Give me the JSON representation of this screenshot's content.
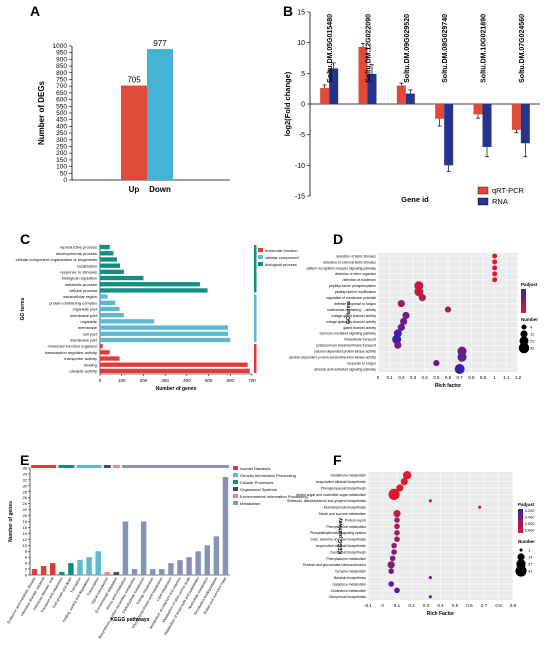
{
  "panel_letters": [
    "A",
    "B",
    "C",
    "D",
    "E",
    "F"
  ],
  "colors": {
    "red": "#e04a3a",
    "blue": "#44b3d6",
    "navy": "#27348b",
    "teal": "#12907f",
    "lightblue": "#5db8d6",
    "darkred": "#e03b3a",
    "orange": "#e58c7b",
    "slate": "#8593b7",
    "dkslate": "#3c4a6e"
  },
  "chart_data": [
    {
      "panel": "A",
      "type": "bar",
      "categories": [
        "Up",
        "Down"
      ],
      "values": [
        705,
        977
      ],
      "data_labels": [
        "705",
        "977"
      ],
      "ylabel": "Number of DEGs",
      "ylim": [
        0,
        1000
      ],
      "yticks": [
        0,
        50,
        100,
        150,
        200,
        250,
        300,
        350,
        400,
        450,
        500,
        550,
        600,
        650,
        700,
        750,
        800,
        850,
        900,
        950,
        1000
      ],
      "colors": [
        "#e04a3a",
        "#44b3d6"
      ]
    },
    {
      "panel": "B",
      "type": "bar",
      "categories": [
        "Soltu.DM.05G015480",
        "Soltu.DM.12G022090",
        "Soltu.DM.09G029520",
        "Soltu.DM.08G029740",
        "Soltu.DM.10G021890",
        "Soltu.DM.07G024560"
      ],
      "series": [
        {
          "name": "qRT-PCR",
          "values": [
            2.6,
            9.3,
            3.0,
            -2.4,
            -1.7,
            -4.2
          ],
          "color": "#e04a3a"
        },
        {
          "name": "RNA",
          "values": [
            5.8,
            4.9,
            1.7,
            -10.0,
            -7.0,
            -6.4
          ],
          "color": "#27348b"
        }
      ],
      "xlabel": "Gene id",
      "ylabel": "log2(Fold change)",
      "ylim": [
        -15,
        15
      ],
      "yticks": [
        -15,
        -10,
        -5,
        0,
        5,
        10,
        15
      ]
    },
    {
      "panel": "C",
      "type": "bar",
      "categories": [
        "reproductive process",
        "developmental process",
        "cellular component organization or biogenesis",
        "localization",
        "response to stimulus",
        "biological regulation",
        "metabolic process",
        "cellular process",
        "extracellular region",
        "protein-containing complex",
        "organelle part",
        "membrane part",
        "organelle",
        "membrane",
        "cell part",
        "membrane part",
        "molecular function regulator",
        "transcription regulator activity",
        "transporter activity",
        "binding",
        "catalytic activity"
      ],
      "values": [
        45,
        62,
        78,
        92,
        110,
        200,
        460,
        495,
        35,
        70,
        90,
        110,
        250,
        590,
        590,
        600,
        12,
        45,
        90,
        680,
        690
      ],
      "category_group": [
        "biological process",
        "biological process",
        "biological process",
        "biological process",
        "biological process",
        "biological process",
        "biological process",
        "biological process",
        "cellular component",
        "cellular component",
        "cellular component",
        "cellular component",
        "cellular component",
        "cellular component",
        "cellular component",
        "cellular component",
        "molecular function",
        "molecular function",
        "molecular function",
        "molecular function",
        "molecular function"
      ],
      "legend": [
        {
          "name": "molecular function",
          "color": "#e03b3a"
        },
        {
          "name": "cellular component",
          "color": "#5db8d6"
        },
        {
          "name": "biological process",
          "color": "#12907f"
        }
      ],
      "xlabel": "Number of genes",
      "ylabel": "GO terms",
      "xlim": [
        0,
        700
      ],
      "xticks": [
        0,
        100,
        200,
        300,
        400,
        500,
        600,
        700
      ]
    },
    {
      "panel": "D",
      "type": "scatter",
      "categories": [
        "detection of biotic stimulus",
        "detection of external biotic stimulus",
        "pattern recognition receptor signaling pathway",
        "detection of other organism",
        "detection of bacterium",
        "peptidyl-serine phosphorylation",
        "peptidyl-serine modification",
        "regulation of membrane potential",
        "defense response to fungus",
        "nucleobase-containing ... activity",
        "voltage-gated channel activity",
        "voltage-gated ion channel activity",
        "gated channel activity",
        "hormone-mediated signaling pathway",
        "intracellular transport",
        "potassium ion transmembrane transport",
        "calcium-dependent protein kinase activity",
        "calcium-dependent protein serine/threonine kinase activity",
        "response to fungus",
        "abscisic acid-activated signaling pathway"
      ],
      "x": [
        1.0,
        1.0,
        1.0,
        1.0,
        1.0,
        0.35,
        0.35,
        0.38,
        0.2,
        0.6,
        0.24,
        0.22,
        0.2,
        0.17,
        0.16,
        0.17,
        0.72,
        0.72,
        0.5,
        0.7
      ],
      "sizes": [
        4,
        4,
        4,
        4,
        4,
        22,
        22,
        12,
        12,
        8,
        12,
        12,
        12,
        16,
        22,
        12,
        22,
        22,
        8,
        28
      ],
      "padjust": [
        1e-05,
        1e-05,
        1e-05,
        1e-05,
        1e-05,
        0.0003,
        0.0003,
        0.0005,
        0.0008,
        0.0006,
        0.0012,
        0.0013,
        0.0014,
        0.0017,
        0.0018,
        0.0012,
        0.0014,
        0.0014,
        0.0013,
        0.0018
      ],
      "xlabel": "Rich factor",
      "ylabel": "GO terms",
      "xlim": [
        0,
        1.2
      ],
      "xticks": [
        "0",
        "0.1",
        "0.2",
        "0.3",
        "0.4",
        "0.5",
        "0.6",
        "0.7",
        "0.8",
        "0.9",
        "1",
        "1.1",
        "1.2"
      ],
      "legend_title_color": "Padjust",
      "legend_title_size": "Number",
      "size_levels": [
        4,
        12,
        22,
        32
      ]
    },
    {
      "panel": "E",
      "type": "bar",
      "categories": [
        "Endocrine and metabolic disease",
        "Infectious disease: bacterial",
        "Infectious disease: viral",
        "Transport and catabolism",
        "Cell growth and death",
        "Translation",
        "Folding, sorting and degradation",
        "Transcription",
        "Signal transduction",
        "Environmental adaptation",
        "Amino acid metabolism",
        "Biosynthesis of other secondary metabolites",
        "Carbohydrate metabolism",
        "Energy metabolism",
        "Glycan biosynthesis and metabolism",
        "Lipid metabolism",
        "Metabolism of cofactors and vitamins",
        "Metabolism of other amino acids",
        "Metabolism of terpenoids and polyketides",
        "Nucleotide metabolism",
        "Xenobiotics biodegradation",
        "Global and overview maps"
      ],
      "values": [
        2,
        3,
        4,
        1,
        4,
        5,
        6,
        8,
        1,
        1,
        18,
        2,
        18,
        2,
        2,
        4,
        5,
        6,
        8,
        10,
        13,
        33
      ],
      "category_group": [
        "Human Diseases",
        "Human Diseases",
        "Human Diseases",
        "Cellular Processes",
        "Cellular Processes",
        "Genetic Information Processing",
        "Genetic Information Processing",
        "Genetic Information Processing",
        "Environmental Information Processing",
        "Organismal Systems",
        "Metabolism",
        "Metabolism",
        "Metabolism",
        "Metabolism",
        "Metabolism",
        "Metabolism",
        "Metabolism",
        "Metabolism",
        "Metabolism",
        "Metabolism",
        "Metabolism",
        "Metabolism"
      ],
      "legend": [
        {
          "name": "Human Diseases",
          "color": "#e03b3a"
        },
        {
          "name": "Genetic Information Processing",
          "color": "#5db8d6"
        },
        {
          "name": "Cellular Processes",
          "color": "#12907f"
        },
        {
          "name": "Organismal Systems",
          "color": "#3c4a6e"
        },
        {
          "name": "Environmental Information Processing",
          "color": "#e58c7b"
        },
        {
          "name": "Metabolism",
          "color": "#8593b7"
        }
      ],
      "xlabel": "KEGG pathways",
      "ylabel": "Number of genes",
      "ylim": [
        0,
        36
      ],
      "yticks": [
        0,
        2,
        4,
        6,
        8,
        10,
        12,
        14,
        16,
        18,
        20,
        22,
        24,
        26,
        28,
        30,
        32,
        34,
        36
      ]
    },
    {
      "panel": "F",
      "type": "scatter",
      "categories": [
        "Glutathione metabolism",
        "Isoquinoline alkaloid biosynthesis",
        "Phenylpropanoid biosynthesis",
        "Amino sugar and nucleotide sugar metabolism",
        "Stilbenoid, diarylheptanoid and gingerol biosynthesis",
        "Monoterpenoid biosynthesis",
        "Starch and sucrose metabolism",
        "Protein export",
        "Phenylalanine metabolism",
        "Phosphatidylinositol signaling system",
        "Cutin, suberine and wax biosynthesis",
        "Isoquinoline alkaloid biosynthesis",
        "Carotenoid biosynthesis",
        "Phenylalanine metabolism",
        "Pentose and glucuronate interconversions",
        "Tyrosine metabolism",
        "Betalain biosynthesis",
        "Galactose metabolism",
        "Cholesterol metabolism",
        "Diterpenoid biosynthesis"
      ],
      "x": [
        0.17,
        0.15,
        0.12,
        0.08,
        0.33,
        0.67,
        0.1,
        0.1,
        0.1,
        0.1,
        0.1,
        0.08,
        0.08,
        0.07,
        0.06,
        0.06,
        0.33,
        0.06,
        0.1,
        0.33
      ],
      "sizes": [
        20,
        14,
        14,
        41,
        1,
        1,
        14,
        7,
        7,
        7,
        7,
        7,
        7,
        7,
        14,
        7,
        1,
        7,
        7,
        1
      ],
      "padjust": [
        0.05,
        0.05,
        0.05,
        0.08,
        0.1,
        0.15,
        0.2,
        0.3,
        0.3,
        0.35,
        0.4,
        0.4,
        0.45,
        0.5,
        0.55,
        0.55,
        0.6,
        0.65,
        0.7,
        0.75
      ],
      "xlabel": "Rich Factor",
      "ylabel": "KEGG pathway",
      "xlim": [
        -0.1,
        0.9
      ],
      "xticks": [
        "-0.1",
        "0",
        "0.1",
        "0.2",
        "0.3",
        "0.4",
        "0.5",
        "0.6",
        "0.7",
        "0.8",
        "0.9"
      ],
      "legend_title_color": "Padjust",
      "legend_title_size": "Number",
      "size_levels": [
        1,
        14,
        27,
        41
      ],
      "padjust_ticks": [
        "0.200",
        "0.400",
        "0.600",
        "0.800"
      ]
    }
  ]
}
